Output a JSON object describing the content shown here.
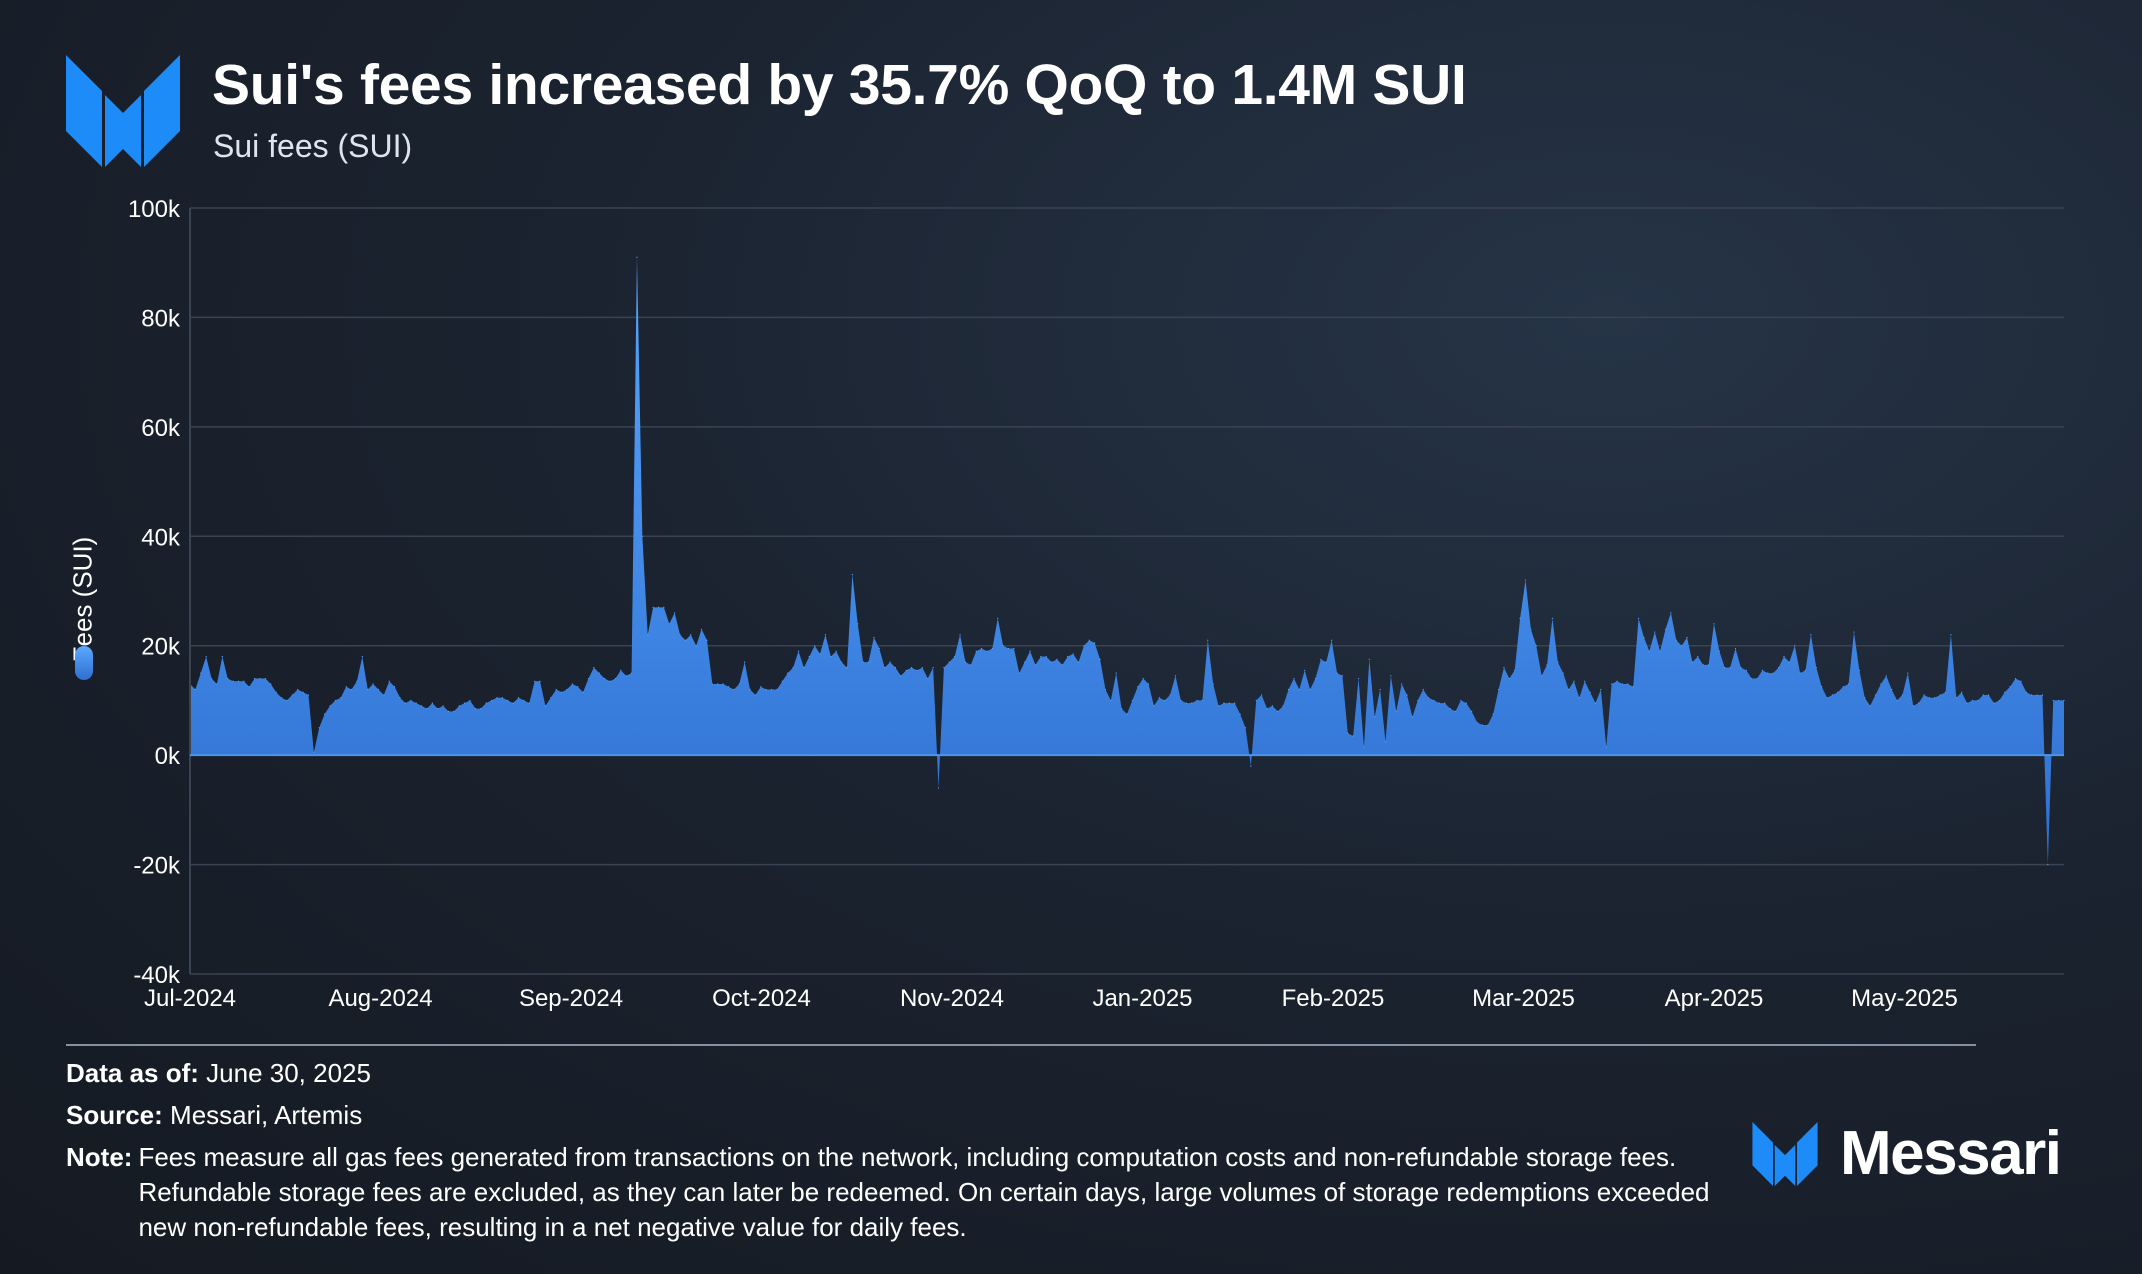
{
  "header": {
    "title": "Sui's fees increased by 35.7% QoQ to 1.4M SUI",
    "subtitle": "Sui fees (SUI)"
  },
  "footer": {
    "data_as_of_label": "Data as of:",
    "data_as_of_value": "June 30, 2025",
    "source_label": "Source:",
    "source_value": "Messari, Artemis",
    "note_label": "Note:",
    "note_value": "Fees measure all gas fees generated from transactions on the network, including computation costs and non-refundable storage fees. Refundable storage fees are excluded, as they can later be redeemed. On certain days, large volumes of storage redemptions exceeded new non-refundable fees, resulting in a net negative value for daily fees.",
    "brand": "Messari"
  },
  "colors": {
    "area_top": "#56a6ff",
    "area_bottom": "#2f6fd0",
    "grid": "#3a4352",
    "brand_blue": "#1d8cf8"
  },
  "icons": [
    "messari-logo-icon"
  ],
  "chart_data": {
    "type": "area",
    "title": "Sui's fees increased by 35.7% QoQ to 1.4M SUI",
    "subtitle": "Sui fees (SUI)",
    "ylabel": "Fees (SUI)",
    "xlabel": "",
    "ylim": [
      -40000,
      100000
    ],
    "y_ticks": [
      -40000,
      -20000,
      0,
      20000,
      40000,
      60000,
      80000,
      100000
    ],
    "y_tick_labels": [
      "-40k",
      "-20k",
      "0k",
      "20k",
      "40k",
      "60k",
      "80k",
      "100k"
    ],
    "x_tick_labels": [
      "Jul-2024",
      "Aug-2024",
      "Sep-2024",
      "Oct-2024",
      "Nov-2024",
      "Jan-2025",
      "Feb-2025",
      "Mar-2025",
      "Apr-2025",
      "May-2025"
    ],
    "grid": true,
    "legend": [
      {
        "name": "Fees (SUI)",
        "position": "left"
      }
    ],
    "series": [
      {
        "name": "Fees (SUI)",
        "values": [
          13000,
          12000,
          15000,
          18000,
          14000,
          13000,
          18000,
          14000,
          13500,
          13500,
          13500,
          12500,
          14000,
          14000,
          14000,
          13000,
          11500,
          10500,
          10000,
          11000,
          12000,
          11500,
          11000,
          500,
          5000,
          7500,
          9000,
          10000,
          10500,
          12500,
          12000,
          13500,
          18000,
          12000,
          13000,
          12000,
          11000,
          13500,
          12500,
          10500,
          9500,
          10000,
          9500,
          9000,
          8500,
          9500,
          8500,
          9000,
          8000,
          8000,
          9000,
          9500,
          10000,
          8500,
          8500,
          9500,
          10000,
          10500,
          10500,
          10000,
          9500,
          10500,
          10000,
          9500,
          13500,
          13500,
          9000,
          10500,
          12000,
          11500,
          12000,
          13000,
          12500,
          11500,
          14000,
          16000,
          15000,
          14000,
          13500,
          14000,
          15500,
          14500,
          15000,
          91000,
          40000,
          22000,
          27000,
          27000,
          27000,
          24000,
          26000,
          22000,
          21000,
          22000,
          20000,
          23000,
          21000,
          13000,
          13000,
          13000,
          12500,
          12000,
          13000,
          17000,
          12000,
          11000,
          12500,
          12000,
          12000,
          12000,
          13500,
          15000,
          16000,
          19000,
          16000,
          18000,
          20000,
          18500,
          22000,
          18000,
          19000,
          17000,
          16000,
          33000,
          24000,
          17000,
          17000,
          21500,
          19500,
          16000,
          17000,
          16000,
          14500,
          15500,
          16000,
          15500,
          16000,
          14000,
          16000,
          -6000,
          16000,
          17000,
          18000,
          22000,
          17000,
          16500,
          19000,
          19500,
          19000,
          19500,
          25000,
          20000,
          19500,
          19500,
          15000,
          17000,
          19000,
          16500,
          18000,
          18000,
          17000,
          17500,
          16500,
          18000,
          18500,
          17000,
          20000,
          21000,
          20500,
          17500,
          12000,
          10000,
          15000,
          8500,
          7500,
          10000,
          12500,
          14000,
          13000,
          9000,
          10500,
          10000,
          11000,
          14500,
          10000,
          9500,
          9500,
          10000,
          10000,
          21000,
          13000,
          9000,
          9500,
          9500,
          9500,
          7500,
          5000,
          -2000,
          10000,
          11000,
          8500,
          9000,
          8000,
          9000,
          12000,
          14000,
          12000,
          15500,
          12000,
          14000,
          17500,
          17000,
          21000,
          15000,
          14500,
          4000,
          3500,
          14000,
          1500,
          17500,
          7000,
          12000,
          2500,
          14500,
          8000,
          13000,
          11000,
          7000,
          10000,
          12000,
          10500,
          10000,
          9500,
          9500,
          8500,
          8000,
          10000,
          9500,
          8000,
          6000,
          5500,
          5500,
          7500,
          12000,
          16000,
          14000,
          15500,
          25000,
          32000,
          23000,
          20000,
          14500,
          16500,
          25000,
          17000,
          15000,
          12000,
          13500,
          10500,
          13500,
          11500,
          9500,
          12000,
          1500,
          13000,
          13500,
          13000,
          13000,
          12500,
          25000,
          21500,
          19000,
          22500,
          19000,
          23000,
          26000,
          21000,
          20000,
          21500,
          17000,
          18000,
          16500,
          16500,
          24000,
          19000,
          16000,
          16000,
          19500,
          16000,
          15500,
          14000,
          14000,
          15500,
          15000,
          15000,
          16000,
          18000,
          17000,
          20000,
          15000,
          15500,
          22000,
          16000,
          12500,
          10500,
          11000,
          11500,
          12500,
          13000,
          22500,
          15500,
          10500,
          9000,
          11000,
          13000,
          14500,
          12000,
          10000,
          11000,
          15000,
          9000,
          9500,
          11000,
          10500,
          10500,
          11000,
          11500,
          22000,
          10500,
          11500,
          9500,
          10000,
          10000,
          11000,
          11000,
          9500,
          10000,
          11500,
          12500,
          14000,
          13500,
          11500,
          11000,
          11000,
          11000,
          -20000,
          10000,
          10000,
          10000
        ]
      }
    ]
  }
}
